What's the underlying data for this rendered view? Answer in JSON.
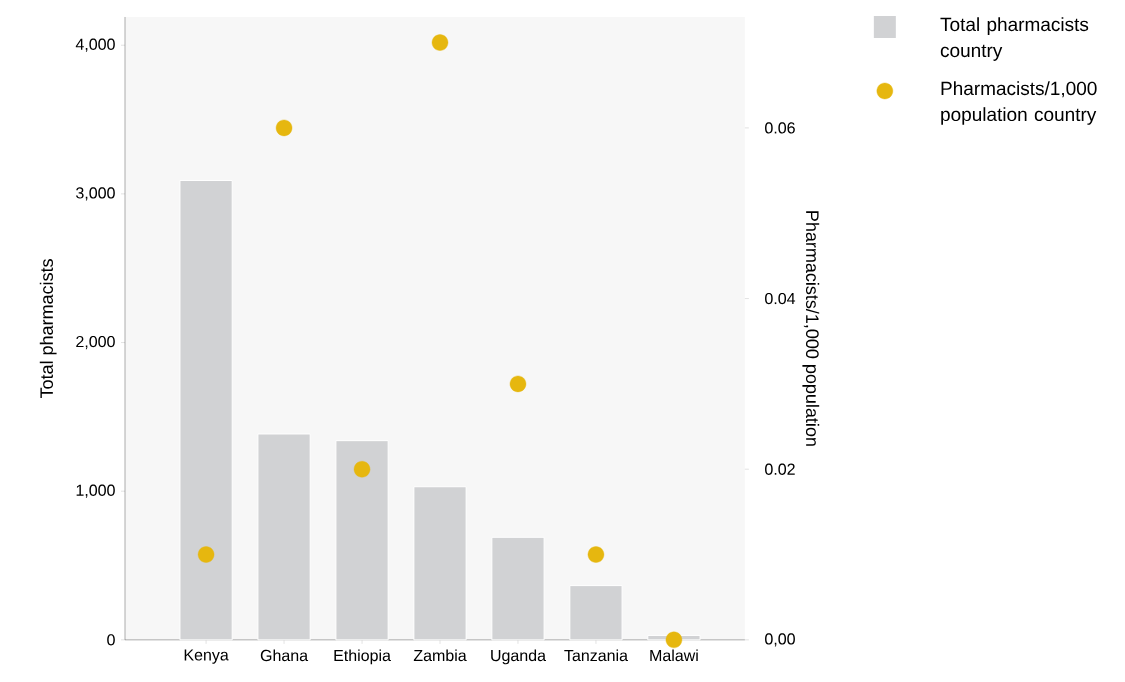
{
  "chart_data": {
    "type": "bar",
    "categories": [
      "Kenya",
      "Ghana",
      "Ethiopia",
      "Zambia",
      "Uganda",
      "Tanzania",
      "Malawi"
    ],
    "series": [
      {
        "name": "Total pharmacists country",
        "color": "#d1d2d4",
        "values": [
          3090,
          1385,
          1340,
          1030,
          690,
          365,
          30
        ]
      },
      {
        "name": "Pharmacists/1,000 population country",
        "type": "scatter",
        "axis": "y2",
        "color": "#e6b70f",
        "values": [
          0.01,
          0.06,
          0.02,
          0.07,
          0.03,
          0.01,
          0.0
        ]
      }
    ],
    "ylabel": "Total pharmacists",
    "y2label": "Pharmacists/1,000 population",
    "ylim": [
      0,
      4190
    ],
    "yticks": [
      0,
      {
        "value": 1000,
        "label": "1,000"
      },
      {
        "value": 2000,
        "label": "2,000"
      },
      {
        "value": 3000,
        "label": "3,000"
      },
      {
        "value": 4000,
        "label": "4,000"
      }
    ],
    "y2lim": [
      0,
      0.073
    ],
    "y2ticks": [
      {
        "value": 0,
        "label": "0,00"
      },
      {
        "value": 0.02,
        "label": "0.02"
      },
      {
        "value": 0.04,
        "label": "0.04"
      },
      {
        "value": 0.06,
        "label": "0.06"
      }
    ],
    "marker": "circle",
    "legend": "top right",
    "grid": false
  }
}
